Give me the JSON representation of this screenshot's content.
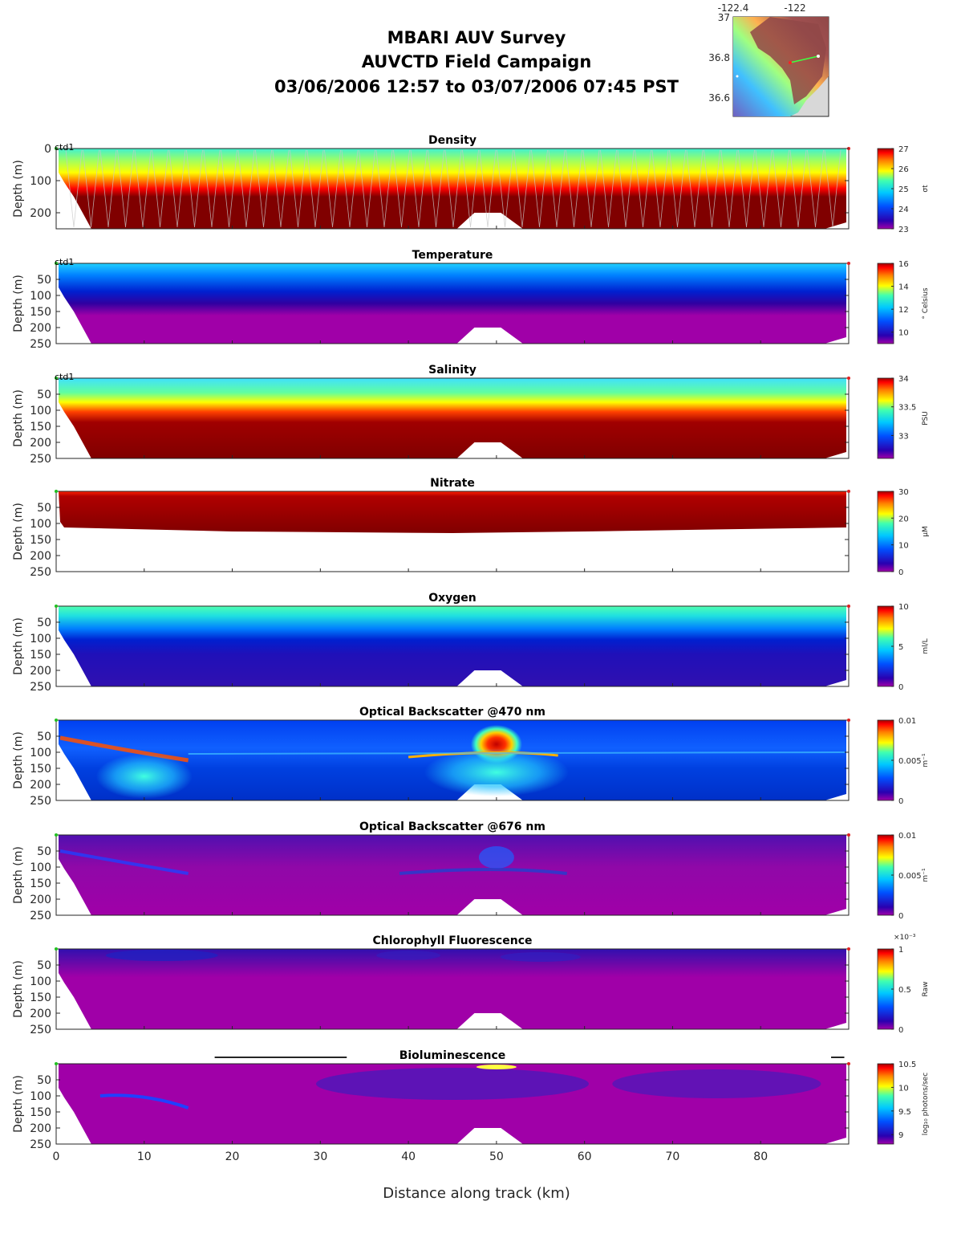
{
  "header": {
    "line1": "MBARI AUV Survey",
    "line2": "AUVCTD Field Campaign",
    "line3": "03/06/2006 12:57  to 03/07/2006 07:45 PST"
  },
  "inset_map": {
    "x_ticks": [
      "-122.4",
      "-122"
    ],
    "y_ticks": [
      "37",
      "36.8",
      "36.6"
    ]
  },
  "colors": {
    "background": "#ffffff",
    "axis": "#262626",
    "deep_red": "#800000",
    "magenta": "#a000a8",
    "white_track": "#ffffff"
  },
  "chart_data": {
    "type": "heatmap",
    "xlabel": "Distance along track (km)",
    "xlim": [
      0,
      90
    ],
    "x_ticks": [
      0,
      10,
      20,
      30,
      40,
      50,
      60,
      70,
      80
    ],
    "ylabel": "Depth (m)",
    "ylim": [
      0,
      250
    ],
    "colormap": "jet with magenta low end",
    "grid": false,
    "panels": [
      {
        "title": "Density",
        "annotation": "ctd1",
        "y_ticks": [
          0,
          100,
          200
        ],
        "ylim": [
          0,
          250
        ],
        "colorbar": {
          "ticks": [
            "23",
            "24",
            "25",
            "26",
            "27"
          ],
          "label": "σt",
          "range": [
            23,
            27
          ]
        }
      },
      {
        "title": "Temperature",
        "annotation": "ctd1",
        "y_ticks": [
          50,
          100,
          150,
          200,
          250
        ],
        "colorbar": {
          "ticks": [
            "10",
            "12",
            "14",
            "16"
          ],
          "label": "° Celsius",
          "range": [
            9,
            16
          ]
        }
      },
      {
        "title": "Salinity",
        "annotation": "ctd1",
        "y_ticks": [
          50,
          100,
          150,
          200,
          250
        ],
        "colorbar": {
          "ticks": [
            "33",
            "33.5",
            "34"
          ],
          "label": "PSU",
          "range": [
            32.6,
            34
          ]
        }
      },
      {
        "title": "Nitrate",
        "annotation": "",
        "y_ticks": [
          50,
          100,
          150,
          200,
          250
        ],
        "colorbar": {
          "ticks": [
            "0",
            "10",
            "20",
            "30"
          ],
          "label": "μM",
          "range": [
            0,
            30
          ]
        }
      },
      {
        "title": "Oxygen",
        "annotation": "",
        "y_ticks": [
          50,
          100,
          150,
          200,
          250
        ],
        "colorbar": {
          "ticks": [
            "0",
            "5",
            "10"
          ],
          "label": "ml/L",
          "range": [
            0,
            10
          ]
        }
      },
      {
        "title": "Optical Backscatter @470 nm",
        "annotation": "",
        "y_ticks": [
          50,
          100,
          150,
          200,
          250
        ],
        "colorbar": {
          "ticks": [
            "0",
            "0.005",
            "0.01"
          ],
          "label": "m⁻¹",
          "range": [
            0,
            0.01
          ]
        }
      },
      {
        "title": "Optical Backscatter @676 nm",
        "annotation": "",
        "y_ticks": [
          50,
          100,
          150,
          200,
          250
        ],
        "colorbar": {
          "ticks": [
            "0",
            "0.005",
            "0.01"
          ],
          "label": "m⁻¹",
          "range": [
            0,
            0.01
          ]
        }
      },
      {
        "title": "Chlorophyll Fluorescence",
        "annotation": "",
        "y_ticks": [
          50,
          100,
          150,
          200,
          250
        ],
        "colorbar": {
          "ticks": [
            "0",
            "0.5",
            "1"
          ],
          "label": "Raw",
          "exponent": "×10⁻³",
          "range": [
            0,
            1
          ]
        }
      },
      {
        "title": "Bioluminescence",
        "annotation": "",
        "y_ticks": [
          50,
          100,
          150,
          200,
          250
        ],
        "colorbar": {
          "ticks": [
            "9",
            "9.5",
            "10",
            "10.5"
          ],
          "label": "log₁₀ photons/sec",
          "range": [
            8.8,
            10.5
          ]
        }
      }
    ]
  }
}
